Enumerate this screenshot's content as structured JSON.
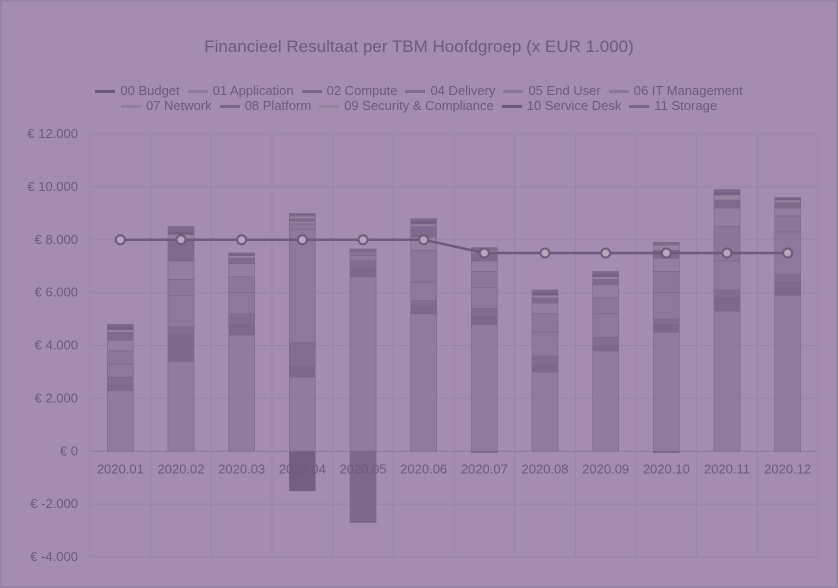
{
  "chart_data": {
    "type": "bar",
    "stacked": true,
    "title": "Financieel Resultaat per TBM Hoofdgroep (x EUR 1.000)",
    "categories": [
      "2020.01",
      "2020.02",
      "2020.03",
      "2020.04",
      "2020.05",
      "2020.06",
      "2020.07",
      "2020.08",
      "2020.09",
      "2020.10",
      "2020.11",
      "2020.12"
    ],
    "ylim": [
      -4000,
      12000
    ],
    "yticks": [
      -4000,
      -2000,
      0,
      2000,
      4000,
      6000,
      8000,
      10000,
      12000
    ],
    "ytick_labels": [
      "€ -4.000",
      "€ -2.000",
      "€ 0",
      "€ 2.000",
      "€ 4.000",
      "€ 6.000",
      "€ 8.000",
      "€ 10.000",
      "€ 12.000"
    ],
    "grid": true,
    "legend_position": "top",
    "line_series": {
      "name": "00 Budget",
      "type": "line",
      "color": "#6e5a7a",
      "values": [
        8000,
        8000,
        8000,
        8000,
        8000,
        8000,
        7500,
        7500,
        7500,
        7500,
        7500,
        7500
      ]
    },
    "series": [
      {
        "name": "01 Application",
        "color": "#8f7a9c",
        "values": [
          2300,
          3400,
          4400,
          2800,
          6600,
          5200,
          4800,
          3000,
          3800,
          4500,
          5300,
          5900
        ]
      },
      {
        "name": "02 Compute",
        "color": "#7a6488",
        "values": [
          200,
          1000,
          400,
          400,
          300,
          300,
          300,
          300,
          200,
          300,
          500,
          500
        ]
      },
      {
        "name": "04 Delivery",
        "color": "#806a8e",
        "values": [
          300,
          300,
          400,
          900,
          300,
          200,
          300,
          300,
          300,
          200,
          300,
          300
        ]
      },
      {
        "name": "05 End User",
        "color": "#8c7699",
        "values": [
          500,
          1200,
          800,
          4300,
          200,
          700,
          800,
          900,
          900,
          1000,
          1100,
          1600
        ]
      },
      {
        "name": "06 IT Management",
        "color": "#8a7497",
        "values": [
          500,
          600,
          600,
          200,
          100,
          1200,
          600,
          700,
          600,
          800,
          1300,
          600
        ]
      },
      {
        "name": "07 Network",
        "color": "#927d9f",
        "values": [
          400,
          700,
          500,
          100,
          50,
          500,
          400,
          400,
          500,
          500,
          700,
          300
        ]
      },
      {
        "name": "08 Platform",
        "color": "#7c6689",
        "values": [
          300,
          800,
          200,
          100,
          100,
          400,
          300,
          200,
          200,
          300,
          300,
          200
        ]
      },
      {
        "name": "09 Security & Compliance",
        "color": "#96819f",
        "values": [
          100,
          200,
          100,
          100,
          0,
          100,
          100,
          100,
          100,
          200,
          200,
          100
        ]
      },
      {
        "name": "10 Service Desk",
        "color": "#6f5a7d",
        "values": [
          100,
          100,
          50,
          -1500,
          0,
          100,
          -50,
          100,
          100,
          -50,
          100,
          50
        ]
      },
      {
        "name": "11 Storage",
        "color": "#7a6487",
        "values": [
          100,
          200,
          50,
          100,
          -2700,
          100,
          100,
          100,
          100,
          100,
          100,
          50
        ]
      }
    ]
  }
}
